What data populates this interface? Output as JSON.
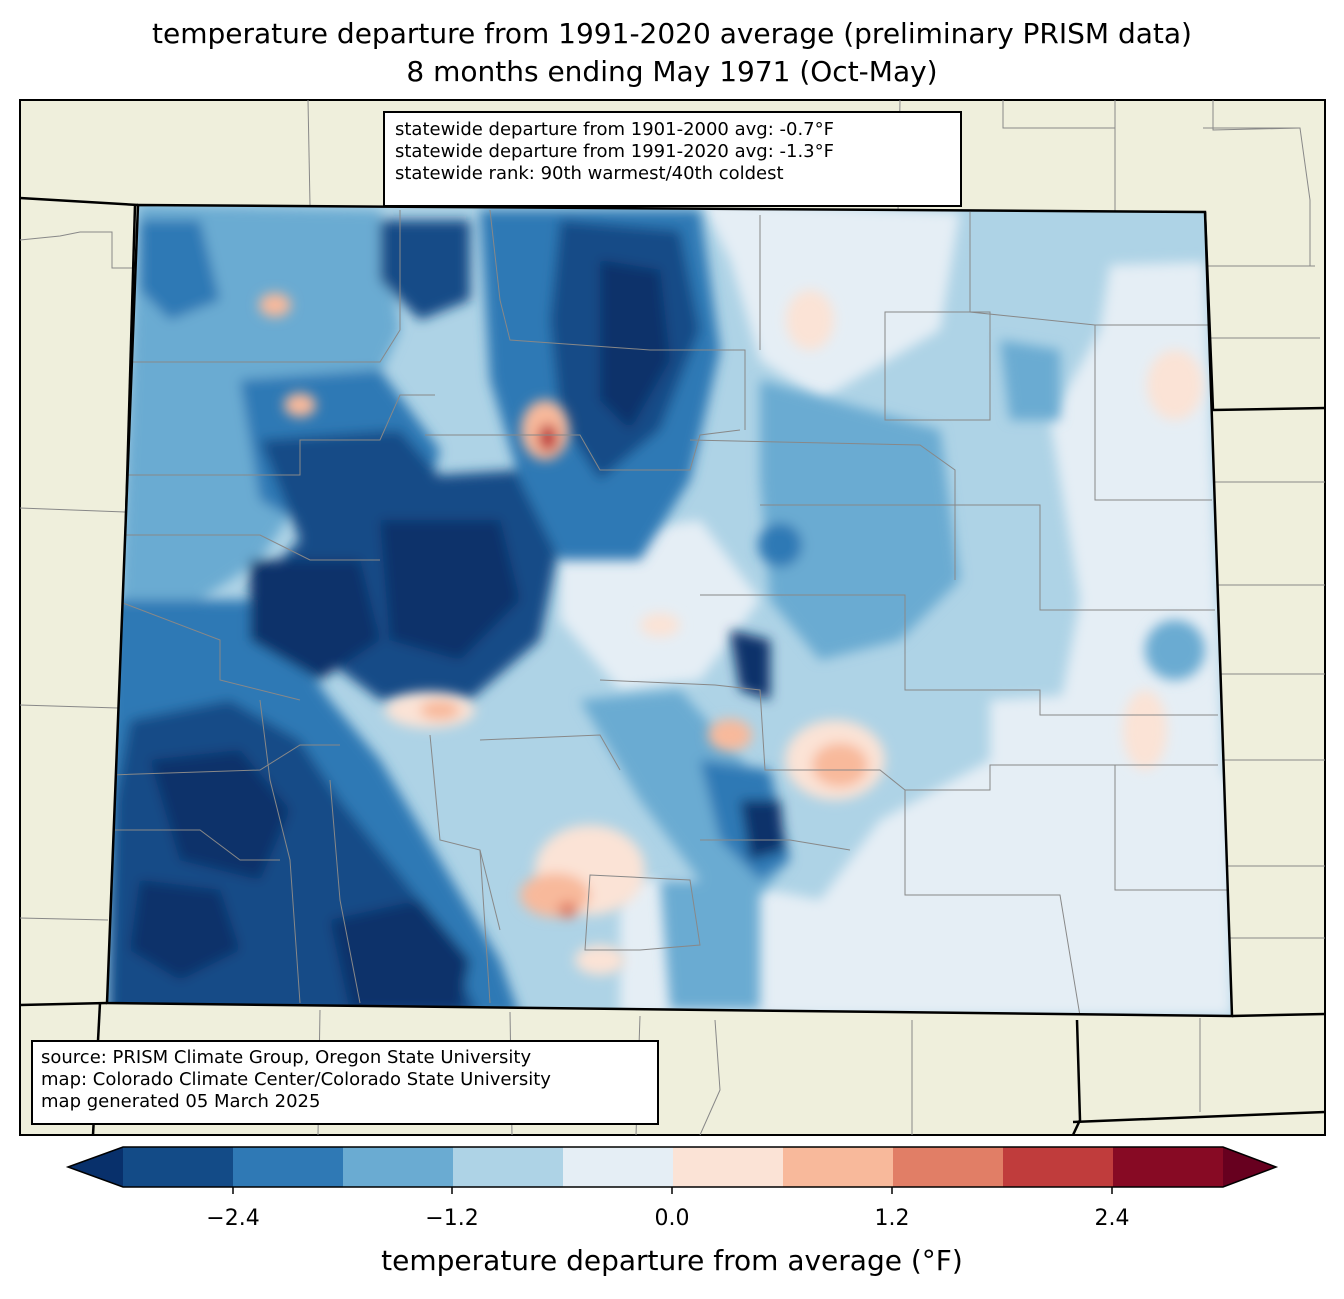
{
  "title": {
    "line1": "temperature departure from 1991-2020 average (preliminary PRISM data)",
    "line2": "8 months ending May 1971 (Oct-May)"
  },
  "stats": {
    "line1": "statewide departure from 1901-2000 avg: -0.7°F",
    "line2": "statewide departure from 1991-2020 avg: -1.3°F",
    "line3": "statewide rank: 90th warmest/40th coldest"
  },
  "source": {
    "line1": "source: PRISM Climate Group, Oregon State University",
    "line2": "map: Colorado Climate Center/Colorado State University",
    "line3": "map generated 05 March 2025"
  },
  "colorbar": {
    "label": "temperature departure from average (°F)",
    "ticks": [
      "−2.4",
      "−1.2",
      "0.0",
      "1.2",
      "2.4"
    ],
    "colors": [
      "#08306b",
      "#134b87",
      "#2f79b5",
      "#6aabd2",
      "#aed3e6",
      "#e5eef5",
      "#fbe3d6",
      "#f8b99b",
      "#e17e66",
      "#c03c3c",
      "#870a24",
      "#67001f"
    ],
    "land_color": "#efefdc"
  }
}
